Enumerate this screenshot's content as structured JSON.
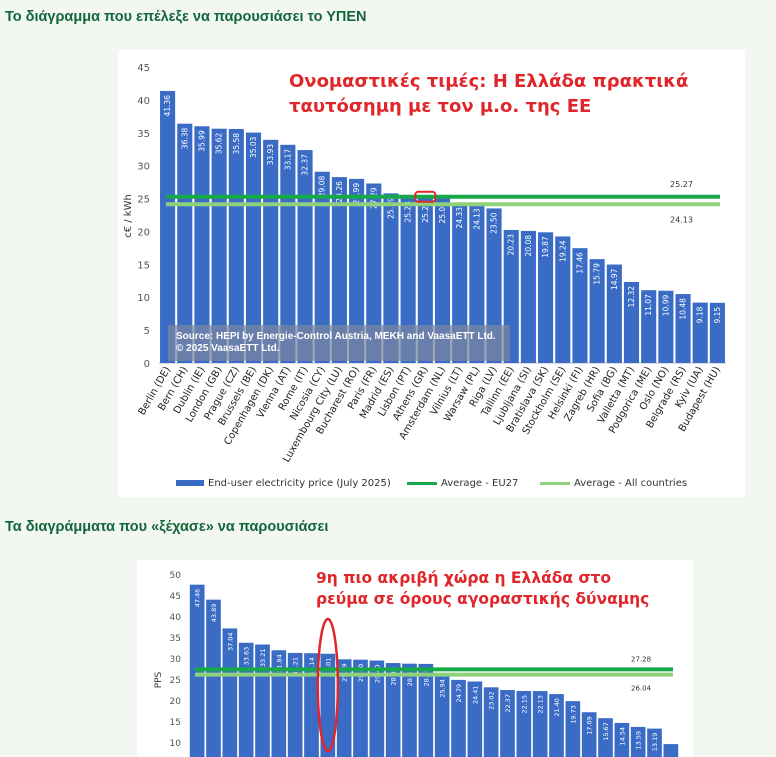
{
  "headings": {
    "top": "Το διάγραμμα που επέλεξε να παρουσιάσει το ΥΠΕΝ",
    "bottom": "Τα διαγράμματα που «ξέχασε» να παρουσιάσει"
  },
  "chart1": {
    "annotation_line1": "Ονομαστικές τιμές: Η Ελλάδα πρακτικά",
    "annotation_line2": "ταυτόσημη με τον μ.ο. της ΕΕ",
    "source_line1": "Source: HEPI by Energie-Control Austria, MEKH and VaasaETT Ltd.",
    "source_line2": "© 2025 VaasaETT Ltd.",
    "legend": {
      "bars": "End-user electricity price (July 2025)",
      "eu27": "Average - EU27",
      "all": "Average - All countries"
    }
  },
  "chart2": {
    "annotation_line1": "9η πιο ακριβή χώρα η Ελλάδα στο",
    "annotation_line2": "ρεύμα σε όρους αγοραστικής δύναμης"
  },
  "colors": {
    "bar": "#3a6cc6",
    "eu27": "#17a84a",
    "all": "#8ed17a",
    "annotation": "#e0262b",
    "heading": "#12663a"
  },
  "chart_data": [
    {
      "type": "bar",
      "title": "",
      "ylabel": "c€ / kWh",
      "xlabel": "",
      "ylim": [
        0,
        45
      ],
      "yticks": [
        0,
        5,
        10,
        15,
        20,
        25,
        30,
        35,
        40,
        45
      ],
      "categories": [
        "Berlin (DE)",
        "Bern (CH)",
        "Dublin (IE)",
        "London (GB)",
        "Prague (CZ)",
        "Brussels (BE)",
        "Copenhagen (DK)",
        "Vienna (AT)",
        "Rome (IT)",
        "Nicosia (CY)",
        "Luxembourg City (LU)",
        "Bucharest (RO)",
        "Paris (FR)",
        "Madrid (ES)",
        "Lisbon (PT)",
        "Athens (GR)",
        "Amsterdam (NL)",
        "Vilnius (LT)",
        "Warsaw (PL)",
        "Riga (LV)",
        "Tallinn (EE)",
        "Ljubljana (SI)",
        "Bratislava (SK)",
        "Stockholm (SE)",
        "Helsinki (FI)",
        "Zagreb (HR)",
        "Sofia (BG)",
        "Valletta (MT)",
        "Podgorica (ME)",
        "Oslo (NO)",
        "Belgrade (RS)",
        "Kyiv (UA)",
        "Budapest (HU)"
      ],
      "values": [
        41.36,
        36.38,
        35.99,
        35.62,
        35.58,
        35.03,
        33.93,
        33.17,
        32.37,
        29.08,
        28.26,
        27.99,
        27.29,
        25.79,
        25.23,
        25.2,
        25.08,
        24.33,
        24.13,
        23.5,
        20.23,
        20.08,
        19.87,
        19.24,
        17.46,
        15.79,
        14.97,
        12.32,
        11.07,
        10.99,
        10.48,
        9.18,
        9.15
      ],
      "value_labels": [
        "41.36",
        "36.38",
        "35.99",
        "35.62",
        "35.58",
        "35.03",
        "33.93",
        "33.17",
        "32.37",
        "29.08",
        "28.26",
        "27.99",
        "27.29",
        "25.79",
        "25.23",
        "25.20",
        "25.08",
        "24.33",
        "24.13",
        "23.50",
        "20.23",
        "20.08",
        "19.87",
        "19.24",
        "17.46",
        "15.79",
        "14.97",
        "12.32",
        "11.07",
        "10.99",
        "10.48",
        "9.18",
        "9.15"
      ],
      "averages": [
        {
          "name": "Average - EU27",
          "value": 25.27,
          "label": "25.27"
        },
        {
          "name": "Average - All countries",
          "value": 24.13,
          "label": "24.13"
        }
      ],
      "highlight_index": 15
    },
    {
      "type": "bar",
      "title": "",
      "ylabel": "PPS",
      "xlabel": "",
      "ylim": [
        0,
        50
      ],
      "yticks": [
        10,
        15,
        20,
        25,
        30,
        35,
        40,
        45,
        50
      ],
      "values": [
        47.46,
        43.89,
        37.04,
        33.63,
        33.21,
        31.84,
        31.21,
        31.14,
        31.01,
        29.69,
        29.6,
        29.4,
        28.8,
        28.65,
        28.59,
        25.94,
        24.79,
        24.41,
        23.02,
        22.37,
        22.15,
        22.13,
        21.4,
        19.73,
        17.09,
        15.67,
        14.54,
        13.59,
        13.19,
        9.5
      ],
      "value_labels": [
        "47.46",
        "43.89",
        "37.04",
        "33.63",
        "33.21",
        "31.84",
        "31.21",
        "31.14",
        "31.01",
        "29.69",
        "29.60",
        "29.40",
        "28.80",
        "28.65",
        "28.59",
        "25.94",
        "24.79",
        "24.41",
        "23.02",
        "22.37",
        "22.15",
        "22.13",
        "21.40",
        "19.73",
        "17.09",
        "15.67",
        "14.54",
        "13.59",
        "13.19",
        ""
      ],
      "averages": [
        {
          "name": "Average - EU27",
          "value": 27.28,
          "label": "27.28"
        },
        {
          "name": "Average - All countries",
          "value": 26.04,
          "label": "26.04"
        }
      ],
      "highlight_index": 8
    }
  ]
}
